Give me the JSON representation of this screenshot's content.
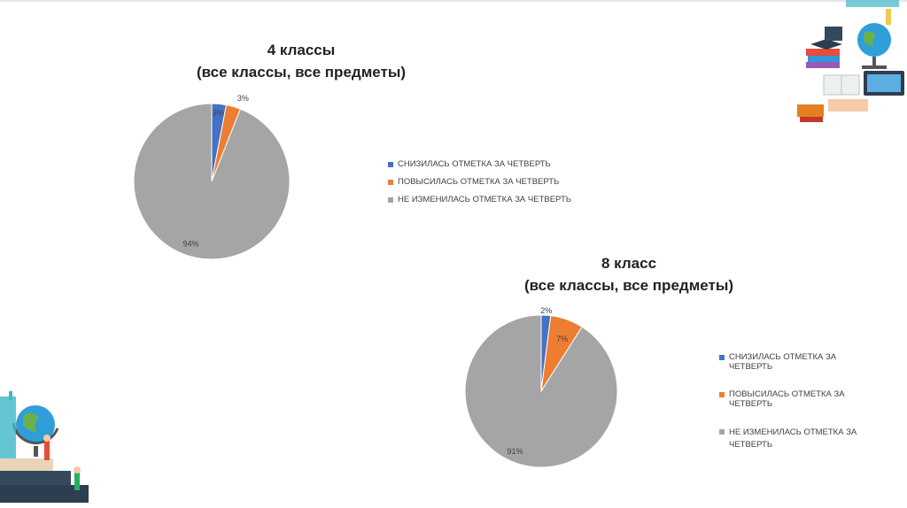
{
  "chart_data": [
    {
      "type": "pie",
      "title_line1": "4 классы",
      "title_line2": "(все классы, все предметы)",
      "categories": [
        "СНИЗИЛАСЬ ОТМЕТКА ЗА ЧЕТВЕРТЬ",
        "ПОВЫСИЛАСЬ ОТМЕТКА ЗА ЧЕТВЕРТЬ",
        "НЕ ИЗМЕНИЛАСЬ ОТМЕТКА ЗА ЧЕТВЕРТЬ"
      ],
      "values": [
        3,
        3,
        94
      ],
      "data_labels": [
        "3%",
        "3%",
        "94%"
      ],
      "colors": [
        "#4472c4",
        "#ed7d31",
        "#a5a5a5"
      ],
      "legend_position": "right"
    },
    {
      "type": "pie",
      "title_line1": "8 класс",
      "title_line2": "(все классы, все предметы)",
      "categories": [
        "СНИЗИЛАСЬ ОТМЕТКА ЗА ЧЕТВЕРТЬ",
        "ПОВЫСИЛАСЬ ОТМЕТКА ЗА ЧЕТВЕРТЬ",
        "НЕ ИЗМЕНИЛАСЬ ОТМЕТКА ЗА ЧЕТВЕРТЬ"
      ],
      "values": [
        2,
        7,
        91
      ],
      "data_labels": [
        "2%",
        "7%",
        "91%"
      ],
      "colors": [
        "#4472c4",
        "#ed7d31",
        "#a5a5a5"
      ],
      "legend_position": "right"
    }
  ],
  "decorations": {
    "top_right": "school-supplies-illustration",
    "bottom_left": "globe-and-books-illustration"
  }
}
